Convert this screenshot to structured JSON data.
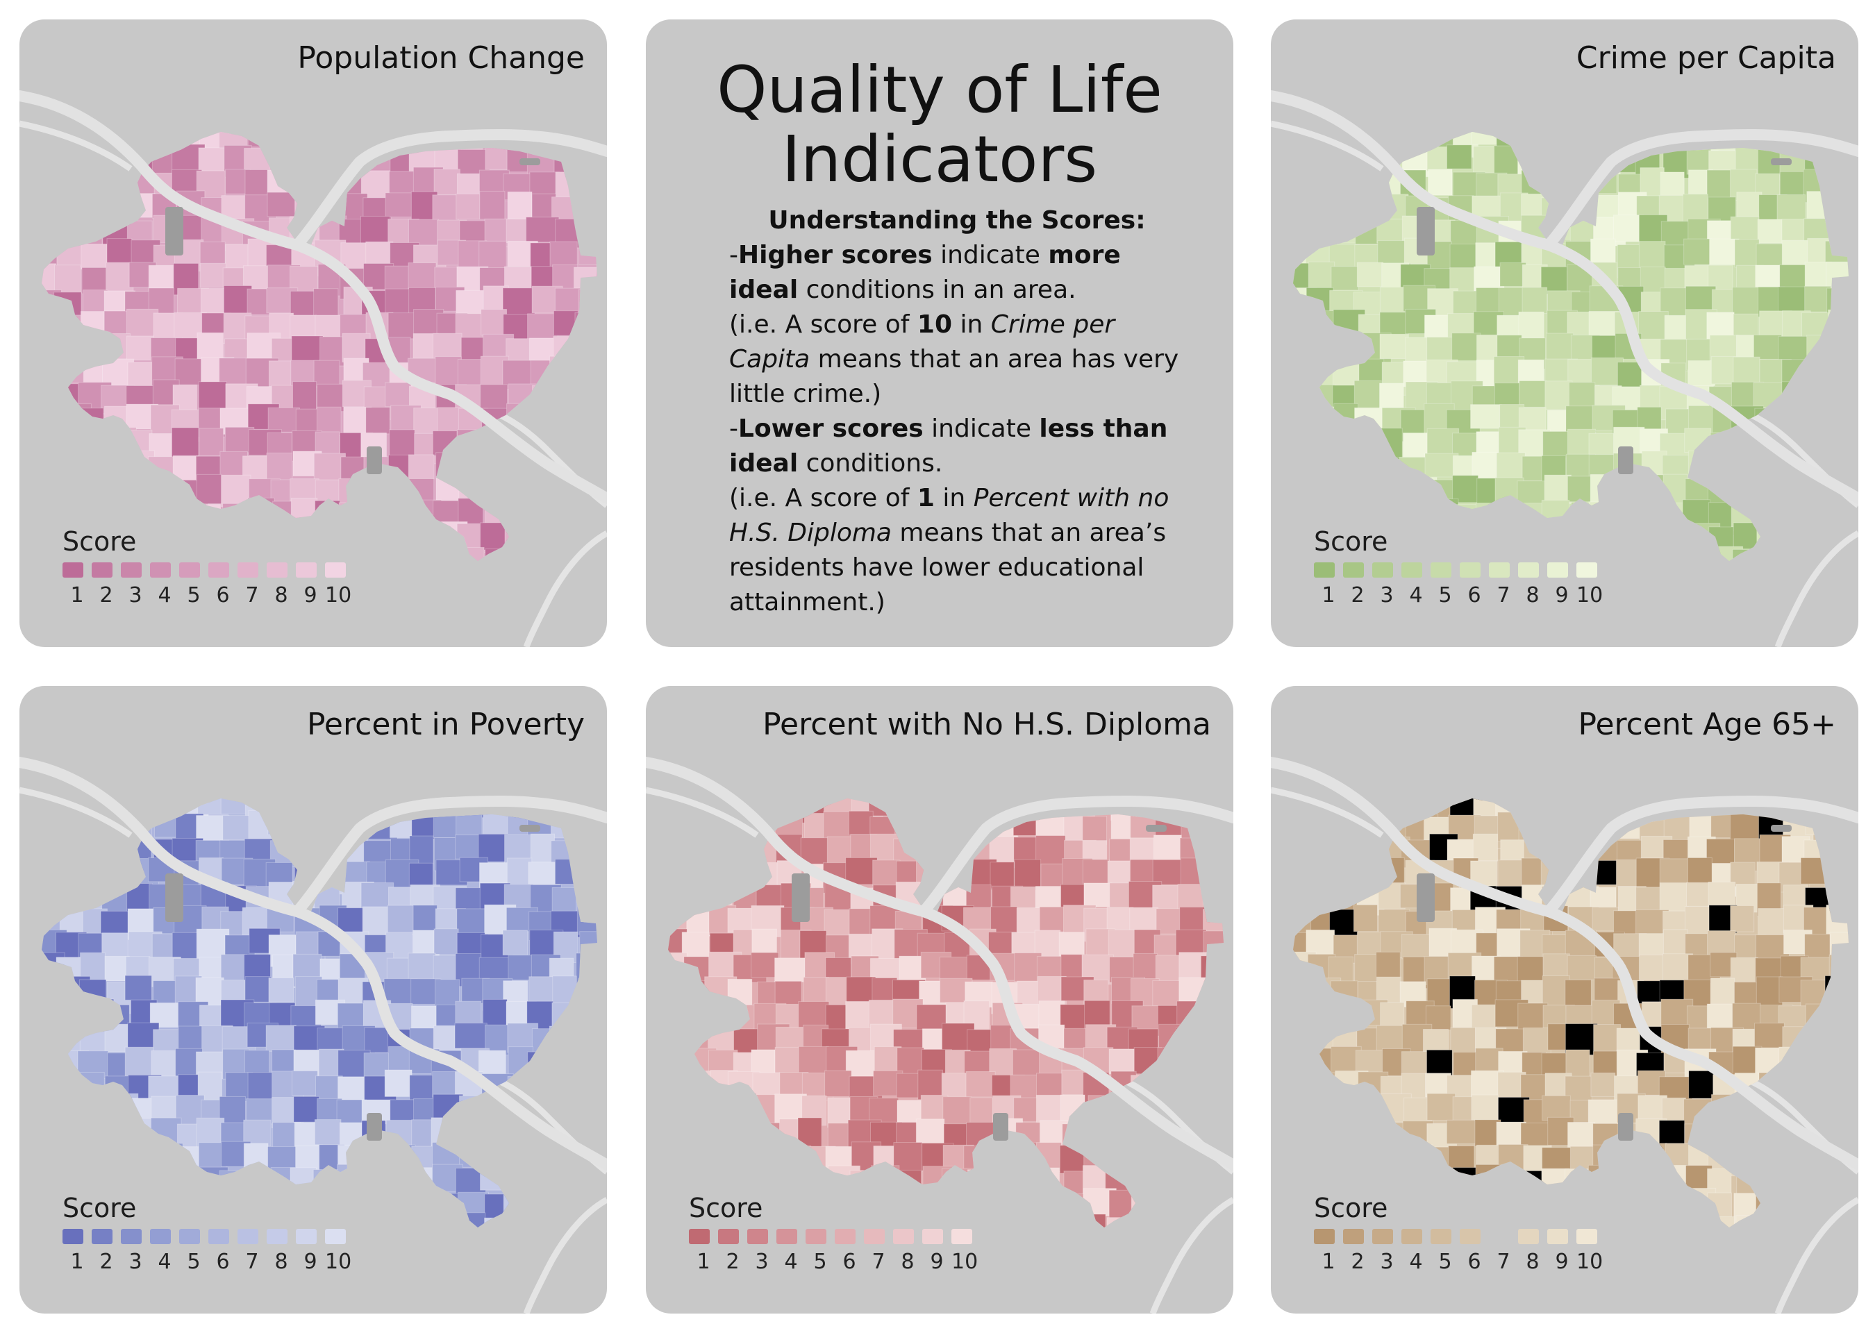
{
  "header": {
    "title_line1": "Quality of Life",
    "title_line2": "Indicators"
  },
  "explanation": {
    "heading": "Understanding the Scores:",
    "p1_dash": "-",
    "p1_bold1": "Higher scores",
    "p1_t1": " indicate ",
    "p1_bold2": "more ideal",
    "p1_t2": " conditions in an area.",
    "p2_t1": "(i.e. A score of ",
    "p2_bold": "10",
    "p2_t2": " in ",
    "p2_ital": "Crime per Capita",
    "p2_t3": " means that an area has very little crime.)",
    "p3_dash": "-",
    "p3_bold1": "Lower scores",
    "p3_t1": " indicate ",
    "p3_bold2": "less than ideal",
    "p3_t2": " conditions.",
    "p4_t1": "(i.e. A score of ",
    "p4_bold": "1",
    "p4_t2": " in ",
    "p4_ital": "Percent with no H.S. Diploma",
    "p4_t3": " means that an area’s residents have lower educational attainment.)"
  },
  "legend_title": "Score",
  "score_labels": [
    "1",
    "2",
    "3",
    "4",
    "5",
    "6",
    "7",
    "8",
    "9",
    "10"
  ],
  "maps": [
    {
      "id": "pop",
      "title": "Population Change",
      "colors": [
        "#bd6c98",
        "#c47aa2",
        "#ca86aa",
        "#d091b3",
        "#d69cbb",
        "#dba7c3",
        "#e1b2ca",
        "#e6bdd2",
        "#ecc8da",
        "#f2d4e3"
      ]
    },
    {
      "id": "crime",
      "title": "Crime per Capita",
      "colors": [
        "#9bbd77",
        "#a8c685",
        "#b3cd91",
        "#bdd49d",
        "#c7dba9",
        "#d0e1b4",
        "#d9e7bf",
        "#e1ecc9",
        "#e9f2d4",
        "#f0f6de"
      ]
    },
    {
      "id": "poverty",
      "title": "Percent in Poverty",
      "colors": [
        "#6870bd",
        "#7680c5",
        "#8590cc",
        "#939ed3",
        "#a1abd9",
        "#aeb6de",
        "#bac1e3",
        "#c5cbe8",
        "#d0d5ec",
        "#dbdff1"
      ]
    },
    {
      "id": "diploma",
      "title": "Percent with No H.S. Diploma",
      "colors": [
        "#c06a72",
        "#c87880",
        "#cf858c",
        "#d59399",
        "#dba0a5",
        "#e1adb1",
        "#e6babd",
        "#ebc6c9",
        "#f0d2d4",
        "#f5dede"
      ]
    },
    {
      "id": "age",
      "title": "Percent Age 65+",
      "colors": [
        "#b79670",
        "#bfa07c",
        "#c6aa88",
        "#ccb393",
        "#d2bc9e",
        "#d8c5aa",
        "#dececb5",
        "#e4d6bf",
        "#eadfca",
        "#f0e7d5"
      ]
    }
  ]
}
